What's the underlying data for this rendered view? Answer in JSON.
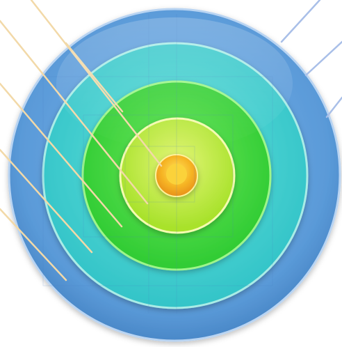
{
  "diagram": {
    "type": "concentric-rings",
    "rings": [
      {
        "name": "outer-ring",
        "color": "#5b9bd5",
        "highlight": "#9cc3ec"
      },
      {
        "name": "ring-2",
        "color": "#3cc9c9",
        "highlight": "#8ee8e0"
      },
      {
        "name": "ring-3",
        "color": "#3ed63a",
        "highlight": "#9af07a"
      },
      {
        "name": "ring-4",
        "color": "#b8e830",
        "highlight": "#eef79a"
      },
      {
        "name": "center-dot",
        "color": "#f3a41b",
        "highlight": "#ffe25a"
      }
    ],
    "connector_lines": {
      "left_color": "#f2d9a8",
      "right_color": "#a9bfe8",
      "left_count": 6,
      "right_count": 3
    }
  }
}
